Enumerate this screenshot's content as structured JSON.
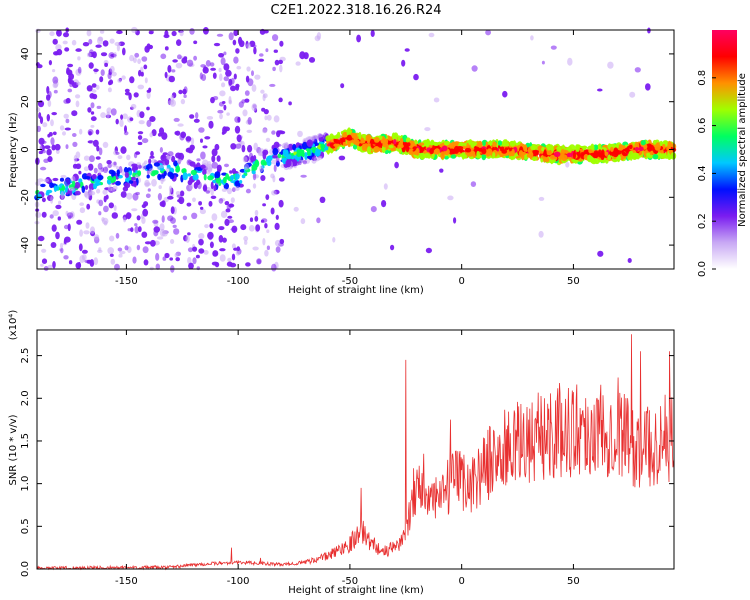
{
  "title": "C2E1.2022.318.16.26.R24",
  "chart_data": [
    {
      "type": "heatmap",
      "xlabel": "Height of straight line (km)",
      "ylabel": "Frequency (Hz)",
      "xlim": [
        -190,
        95
      ],
      "ylim": [
        -50,
        50
      ],
      "xticks": [
        -150,
        -100,
        -50,
        0,
        50
      ],
      "yticks": [
        -40,
        -20,
        0,
        20,
        40
      ],
      "xtick_labels": [
        "-150",
        "-100",
        "-50",
        "0",
        "50"
      ],
      "ytick_labels": [
        "-40",
        "-20",
        "0",
        "20",
        "40"
      ],
      "colorbar": {
        "label": "Normalized spectral amplitude",
        "range": [
          0,
          1
        ],
        "ticks": [
          0.0,
          0.2,
          0.4,
          0.6,
          0.8
        ],
        "tick_labels": [
          "0.0",
          "0.2",
          "0.4",
          "0.6",
          "0.8"
        ],
        "colors": [
          "#ffffff",
          "#c8a8f4",
          "#7a1cf0",
          "#0010ff",
          "#00c8ff",
          "#00ff60",
          "#a0ff00",
          "#ff9000",
          "#ff0000",
          "#ff0060"
        ]
      },
      "ridge": {
        "x": [
          -190,
          -130,
          -120,
          -110,
          -100,
          -90,
          -80,
          -70,
          -60,
          -50,
          -45,
          -40,
          -30,
          -20,
          0,
          20,
          40,
          60,
          80,
          95
        ],
        "y": [
          -18,
          -8,
          -10,
          -13,
          -12,
          -6,
          -3,
          -1,
          2,
          5,
          3,
          2,
          3,
          0,
          0,
          0,
          -2,
          -2,
          0,
          0
        ]
      }
    },
    {
      "type": "line",
      "xlabel": "Height of straight line (km)",
      "ylabel": "SNR (10 * v/v)",
      "y_multiplier": "(x10⁴)",
      "xlim": [
        -190,
        95
      ],
      "ylim": [
        0,
        2.8
      ],
      "xticks": [
        -150,
        -100,
        -50,
        0,
        50
      ],
      "yticks": [
        0.0,
        0.5,
        1.0,
        1.5,
        2.0,
        2.5
      ],
      "xtick_labels": [
        "-150",
        "-100",
        "-50",
        "0",
        "50"
      ],
      "ytick_labels": [
        "0.0",
        "0.5",
        "1.0",
        "1.5",
        "2.0",
        "2.5"
      ],
      "color": "#e83030",
      "trend": {
        "x": [
          -190,
          -130,
          -120,
          -100,
          -80,
          -70,
          -60,
          -50,
          -45,
          -40,
          -35,
          -30,
          -25,
          -22,
          -20,
          -15,
          -10,
          -5,
          0,
          5,
          10,
          20,
          30,
          40,
          50,
          60,
          70,
          75,
          80,
          90,
          95
        ],
        "y": [
          0.01,
          0.02,
          0.05,
          0.08,
          0.05,
          0.08,
          0.15,
          0.3,
          0.45,
          0.3,
          0.2,
          0.25,
          0.4,
          0.9,
          1.0,
          0.8,
          0.8,
          1.0,
          1.05,
          1.0,
          1.2,
          1.4,
          1.5,
          1.6,
          1.65,
          1.6,
          1.7,
          1.5,
          1.4,
          1.5,
          1.6
        ]
      },
      "peaks": {
        "x": [
          -103,
          -90,
          -45,
          -25,
          -17,
          -5,
          30,
          62,
          76,
          80,
          93
        ],
        "y": [
          0.25,
          0.13,
          0.95,
          2.45,
          1.35,
          1.75,
          1.75,
          2.0,
          2.75,
          2.55,
          2.55
        ]
      }
    }
  ]
}
